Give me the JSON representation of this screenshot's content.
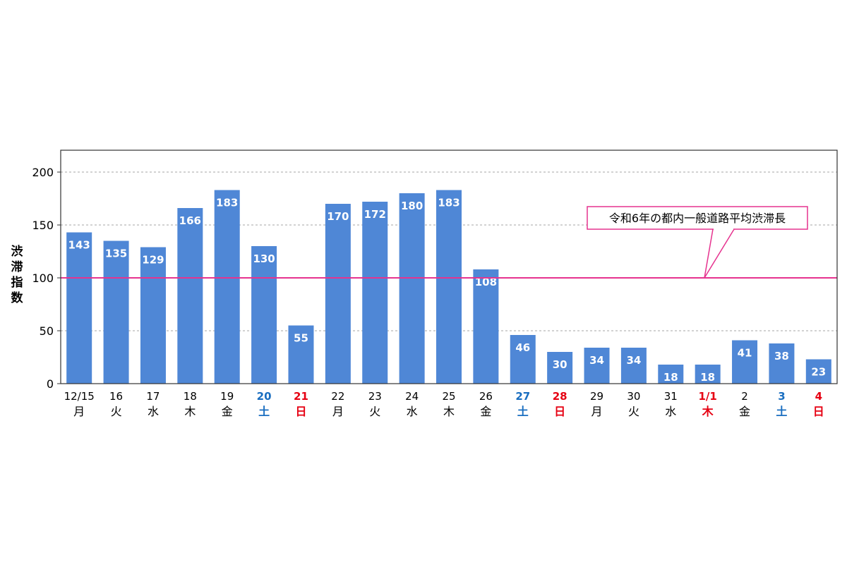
{
  "chart_data": {
    "type": "bar",
    "ylabel": "渋滞指数",
    "ylim": [
      0,
      200
    ],
    "yticks": [
      0,
      50,
      100,
      150,
      200
    ],
    "grid": true,
    "categories": [
      {
        "date": "12/15",
        "day": "月",
        "kind": "weekday"
      },
      {
        "date": "16",
        "day": "火",
        "kind": "weekday"
      },
      {
        "date": "17",
        "day": "水",
        "kind": "weekday"
      },
      {
        "date": "18",
        "day": "木",
        "kind": "weekday"
      },
      {
        "date": "19",
        "day": "金",
        "kind": "weekday"
      },
      {
        "date": "20",
        "day": "土",
        "kind": "saturday"
      },
      {
        "date": "21",
        "day": "日",
        "kind": "holiday"
      },
      {
        "date": "22",
        "day": "月",
        "kind": "weekday"
      },
      {
        "date": "23",
        "day": "火",
        "kind": "weekday"
      },
      {
        "date": "24",
        "day": "水",
        "kind": "weekday"
      },
      {
        "date": "25",
        "day": "木",
        "kind": "weekday"
      },
      {
        "date": "26",
        "day": "金",
        "kind": "weekday"
      },
      {
        "date": "27",
        "day": "土",
        "kind": "saturday"
      },
      {
        "date": "28",
        "day": "日",
        "kind": "holiday"
      },
      {
        "date": "29",
        "day": "月",
        "kind": "weekday"
      },
      {
        "date": "30",
        "day": "火",
        "kind": "weekday"
      },
      {
        "date": "31",
        "day": "水",
        "kind": "weekday"
      },
      {
        "date": "1/1",
        "day": "木",
        "kind": "holiday"
      },
      {
        "date": "2",
        "day": "金",
        "kind": "weekday"
      },
      {
        "date": "3",
        "day": "土",
        "kind": "saturday"
      },
      {
        "date": "4",
        "day": "日",
        "kind": "holiday"
      }
    ],
    "values": [
      143,
      135,
      129,
      166,
      183,
      130,
      55,
      170,
      172,
      180,
      183,
      108,
      46,
      30,
      34,
      34,
      18,
      18,
      41,
      38,
      23
    ],
    "reference_line": {
      "value": 100,
      "label": "令和6年の都内一般道路平均渋滞長"
    },
    "colors": {
      "bar": "#4f87d6",
      "reference": "#e6338f",
      "weekday": "#000000",
      "saturday": "#1a6ec0",
      "holiday": "#e60012",
      "grid": "#a6a6a6",
      "bar_label": "#ffffff"
    }
  }
}
